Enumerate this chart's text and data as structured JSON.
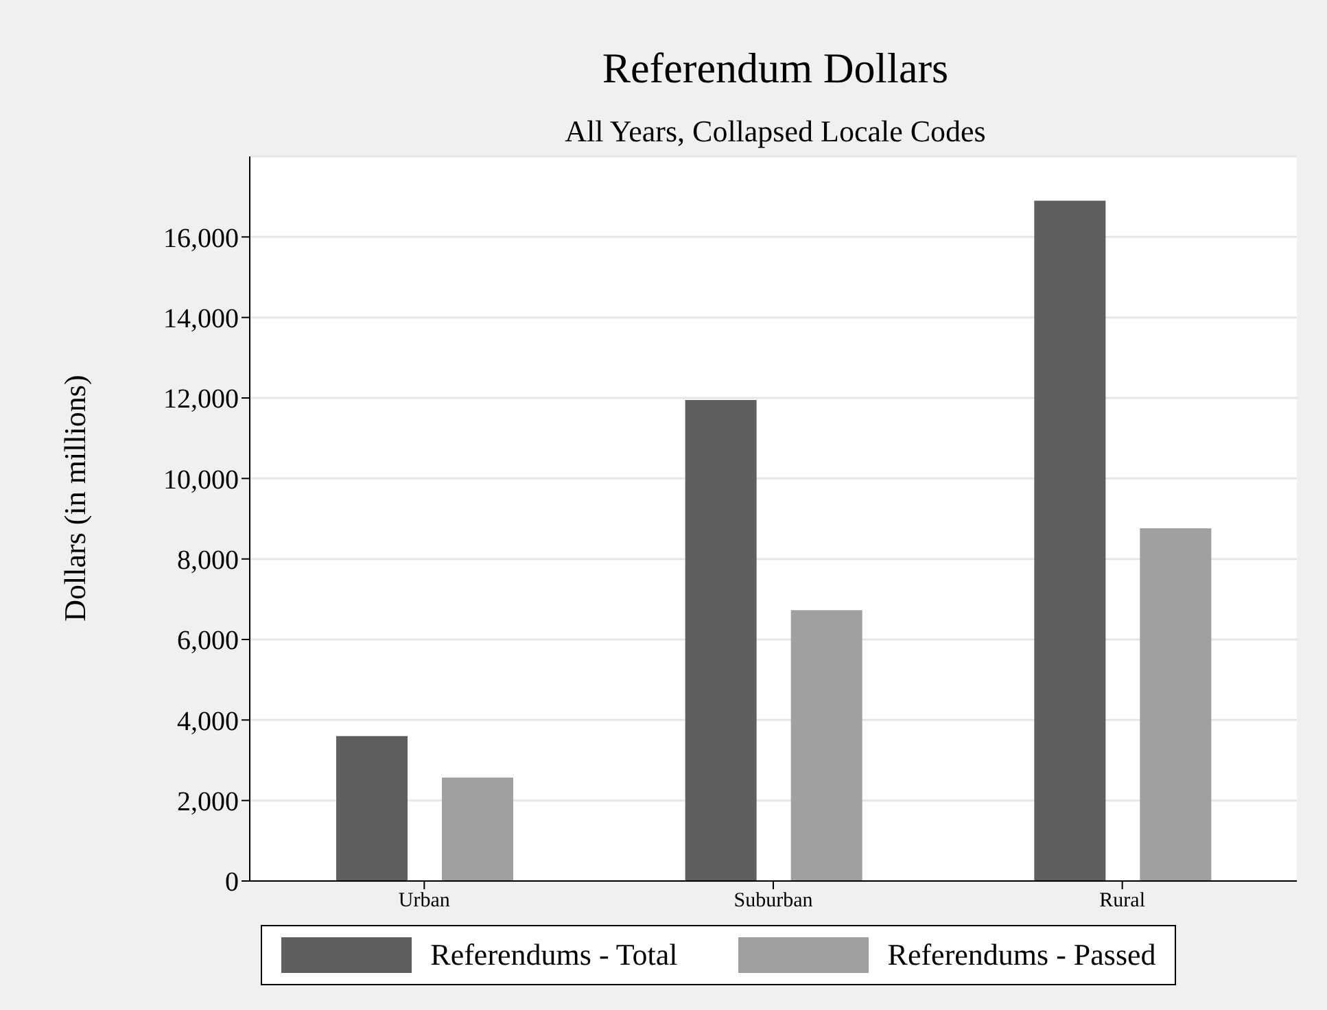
{
  "chart_data": {
    "type": "bar",
    "title": "Referendum Dollars",
    "subtitle": "All Years, Collapsed Locale Codes",
    "ylabel": "Dollars (in millions)",
    "categories": [
      "Urban",
      "Suburban",
      "Rural"
    ],
    "series": [
      {
        "name": "Referendums - Total",
        "color": "#5f5f5f",
        "values": [
          3600,
          11950,
          16900
        ]
      },
      {
        "name": "Referendums - Passed",
        "color": "#a0a0a0",
        "values": [
          2570,
          6730,
          8760
        ]
      }
    ],
    "ylim": [
      0,
      18000
    ],
    "yticks": [
      {
        "value": 0,
        "label": "0"
      },
      {
        "value": 2000,
        "label": "2,000"
      },
      {
        "value": 4000,
        "label": "4,000"
      },
      {
        "value": 6000,
        "label": "6,000"
      },
      {
        "value": 8000,
        "label": "8,000"
      },
      {
        "value": 10000,
        "label": "10,000"
      },
      {
        "value": 12000,
        "label": "12,000"
      },
      {
        "value": 14000,
        "label": "14,000"
      },
      {
        "value": 16000,
        "label": "16,000"
      }
    ],
    "grid": "y",
    "legend": "bottom"
  }
}
